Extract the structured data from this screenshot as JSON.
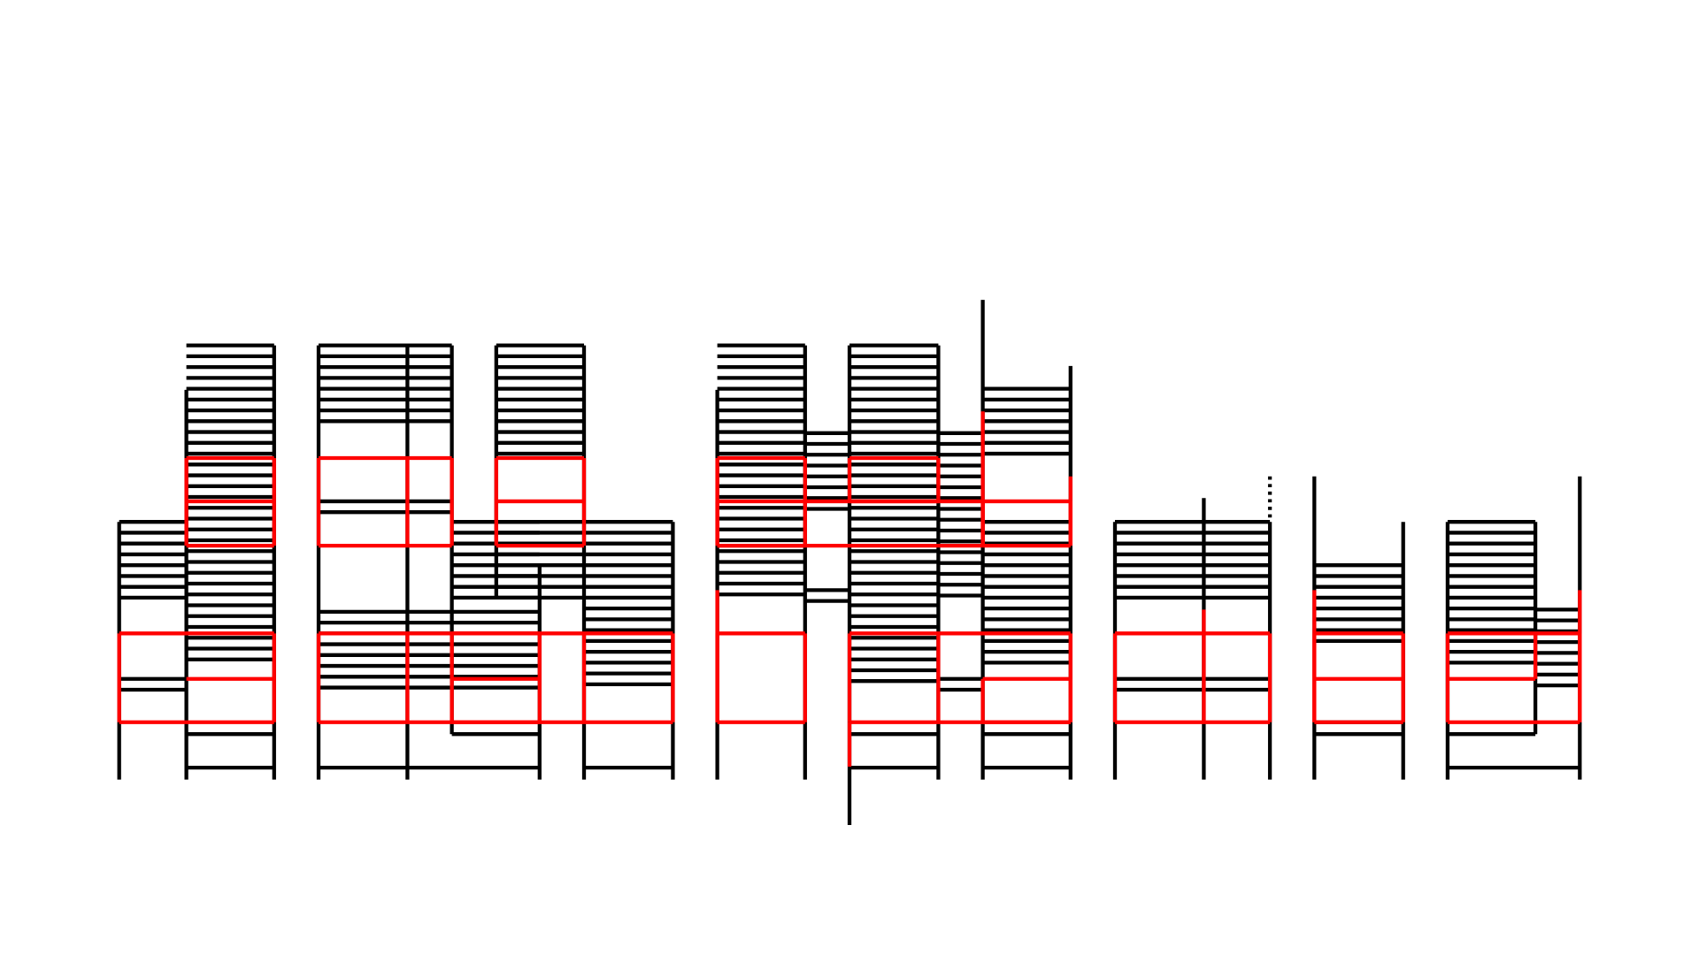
{
  "figure": {
    "colors": {
      "background": "#ffffff",
      "line": "#000000",
      "highlight": "#ff0000"
    }
  }
}
